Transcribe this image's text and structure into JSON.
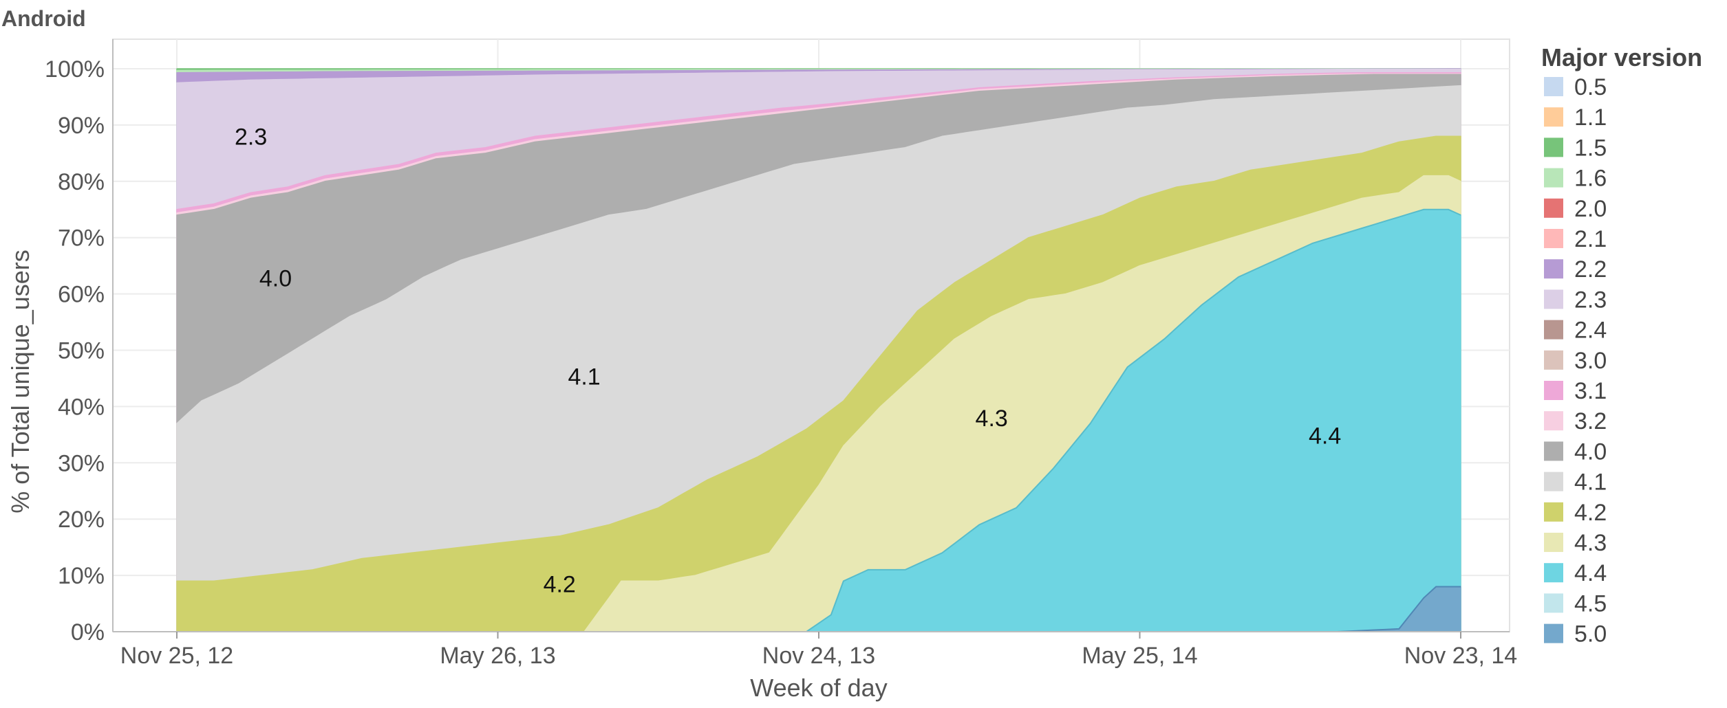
{
  "chart_data": {
    "type": "area",
    "stacked": "percent",
    "title": "Android",
    "xlabel": "Week of day",
    "ylabel": "% of Total unique_users",
    "ylim": [
      0,
      100
    ],
    "x_start": "2012-11-25",
    "x_end": "2014-11-23",
    "x_ticks": [
      {
        "date": "2012-11-25",
        "label": "Nov 25, 12"
      },
      {
        "date": "2013-05-26",
        "label": "May 26, 13"
      },
      {
        "date": "2013-11-24",
        "label": "Nov 24, 13"
      },
      {
        "date": "2014-05-25",
        "label": "May 25, 14"
      },
      {
        "date": "2014-11-23",
        "label": "Nov 23, 14"
      }
    ],
    "y_ticks": [
      "0%",
      "10%",
      "20%",
      "30%",
      "40%",
      "50%",
      "60%",
      "70%",
      "80%",
      "90%",
      "100%"
    ],
    "grid": true,
    "legend_title": "Major version",
    "legend_position": "right",
    "legend": [
      {
        "name": "0.5",
        "color": "#c6d9f0"
      },
      {
        "name": "1.1",
        "color": "#ffcc99"
      },
      {
        "name": "1.5",
        "color": "#77c47a"
      },
      {
        "name": "1.6",
        "color": "#b8e6b8"
      },
      {
        "name": "2.0",
        "color": "#e57373"
      },
      {
        "name": "2.1",
        "color": "#ffb8b8"
      },
      {
        "name": "2.2",
        "color": "#b69bd4"
      },
      {
        "name": "2.3",
        "color": "#dccfe6"
      },
      {
        "name": "2.4",
        "color": "#b89690"
      },
      {
        "name": "3.0",
        "color": "#dcc3bb"
      },
      {
        "name": "3.1",
        "color": "#eea8d8"
      },
      {
        "name": "3.2",
        "color": "#f7cfe1"
      },
      {
        "name": "4.0",
        "color": "#aeaeae"
      },
      {
        "name": "4.1",
        "color": "#dadada"
      },
      {
        "name": "4.2",
        "color": "#cfd26c"
      },
      {
        "name": "4.3",
        "color": "#e8e8b4"
      },
      {
        "name": "4.4",
        "color": "#6ed5e2"
      },
      {
        "name": "4.5",
        "color": "#c2e6ec"
      },
      {
        "name": "5.0",
        "color": "#74a8cc"
      }
    ],
    "bands": [
      {
        "series": "2.3",
        "label": "2.3"
      },
      {
        "series": "4.0",
        "label": "4.0"
      },
      {
        "series": "4.1",
        "label": "4.1"
      },
      {
        "series": "4.2",
        "label": "4.2"
      },
      {
        "series": "4.3",
        "label": "4.3"
      },
      {
        "series": "4.4",
        "label": "4.4"
      }
    ],
    "series": [
      {
        "name": "5.0",
        "points": [
          [
            "2012-11-25",
            0
          ],
          [
            "2014-09-14",
            0
          ],
          [
            "2014-10-19",
            0.5
          ],
          [
            "2014-11-02",
            6
          ],
          [
            "2014-11-09",
            8
          ],
          [
            "2014-11-23",
            8
          ]
        ]
      },
      {
        "name": "4.4",
        "points": [
          [
            "2012-11-25",
            0
          ],
          [
            "2013-11-17",
            0
          ],
          [
            "2013-12-01",
            3
          ],
          [
            "2013-12-08",
            9
          ],
          [
            "2013-12-22",
            11
          ],
          [
            "2014-01-12",
            11
          ],
          [
            "2014-02-02",
            14
          ],
          [
            "2014-02-23",
            19
          ],
          [
            "2014-03-16",
            22
          ],
          [
            "2014-04-06",
            29
          ],
          [
            "2014-04-27",
            37
          ],
          [
            "2014-05-18",
            47
          ],
          [
            "2014-06-08",
            52
          ],
          [
            "2014-06-29",
            58
          ],
          [
            "2014-07-20",
            63
          ],
          [
            "2014-08-10",
            66
          ],
          [
            "2014-08-31",
            69
          ],
          [
            "2014-09-21",
            71
          ],
          [
            "2014-10-12",
            73
          ],
          [
            "2014-11-02",
            75
          ],
          [
            "2014-11-16",
            75
          ],
          [
            "2014-11-23",
            74
          ]
        ]
      },
      {
        "name": "4.3",
        "points": [
          [
            "2012-11-25",
            0
          ],
          [
            "2013-07-14",
            0
          ],
          [
            "2013-08-04",
            9
          ],
          [
            "2013-08-25",
            9
          ],
          [
            "2013-09-15",
            10
          ],
          [
            "2013-10-06",
            12
          ],
          [
            "2013-10-27",
            14
          ],
          [
            "2013-11-10",
            20
          ],
          [
            "2013-11-24",
            26
          ],
          [
            "2013-12-08",
            33
          ],
          [
            "2013-12-29",
            40
          ],
          [
            "2014-01-19",
            46
          ],
          [
            "2014-02-09",
            52
          ],
          [
            "2014-03-02",
            56
          ],
          [
            "2014-03-23",
            59
          ],
          [
            "2014-04-13",
            60
          ],
          [
            "2014-05-04",
            62
          ],
          [
            "2014-05-25",
            65
          ],
          [
            "2014-06-15",
            67
          ],
          [
            "2014-07-06",
            69
          ],
          [
            "2014-07-27",
            71
          ],
          [
            "2014-08-17",
            73
          ],
          [
            "2014-09-07",
            75
          ],
          [
            "2014-09-28",
            77
          ],
          [
            "2014-10-19",
            78
          ],
          [
            "2014-11-02",
            81
          ],
          [
            "2014-11-16",
            81
          ],
          [
            "2014-11-23",
            80
          ]
        ]
      },
      {
        "name": "4.2",
        "points": [
          [
            "2012-11-25",
            9
          ],
          [
            "2012-12-16",
            9
          ],
          [
            "2013-01-13",
            10
          ],
          [
            "2013-02-10",
            11
          ],
          [
            "2013-03-10",
            13
          ],
          [
            "2013-04-07",
            14
          ],
          [
            "2013-05-05",
            15
          ],
          [
            "2013-06-02",
            16
          ],
          [
            "2013-06-30",
            17
          ],
          [
            "2013-07-28",
            19
          ],
          [
            "2013-08-25",
            22
          ],
          [
            "2013-09-22",
            27
          ],
          [
            "2013-10-20",
            31
          ],
          [
            "2013-11-17",
            36
          ],
          [
            "2013-12-08",
            41
          ],
          [
            "2013-12-29",
            49
          ],
          [
            "2014-01-19",
            57
          ],
          [
            "2014-02-09",
            62
          ],
          [
            "2014-03-02",
            66
          ],
          [
            "2014-03-23",
            70
          ],
          [
            "2014-04-13",
            72
          ],
          [
            "2014-05-04",
            74
          ],
          [
            "2014-05-25",
            77
          ],
          [
            "2014-06-15",
            79
          ],
          [
            "2014-07-06",
            80
          ],
          [
            "2014-07-27",
            82
          ],
          [
            "2014-08-17",
            83
          ],
          [
            "2014-09-07",
            84
          ],
          [
            "2014-09-28",
            85
          ],
          [
            "2014-10-19",
            87
          ],
          [
            "2014-11-09",
            88
          ],
          [
            "2014-11-23",
            88
          ]
        ]
      },
      {
        "name": "4.1",
        "points": [
          [
            "2012-11-25",
            37
          ],
          [
            "2012-12-09",
            41
          ],
          [
            "2012-12-30",
            44
          ],
          [
            "2013-01-20",
            48
          ],
          [
            "2013-02-10",
            52
          ],
          [
            "2013-03-03",
            56
          ],
          [
            "2013-03-24",
            59
          ],
          [
            "2013-04-14",
            63
          ],
          [
            "2013-05-05",
            66
          ],
          [
            "2013-05-26",
            68
          ],
          [
            "2013-06-16",
            70
          ],
          [
            "2013-07-07",
            72
          ],
          [
            "2013-07-28",
            74
          ],
          [
            "2013-08-18",
            75
          ],
          [
            "2013-09-08",
            77
          ],
          [
            "2013-09-29",
            79
          ],
          [
            "2013-10-20",
            81
          ],
          [
            "2013-11-10",
            83
          ],
          [
            "2013-12-01",
            84
          ],
          [
            "2013-12-22",
            85
          ],
          [
            "2014-01-12",
            86
          ],
          [
            "2014-02-02",
            88
          ],
          [
            "2014-02-23",
            89
          ],
          [
            "2014-03-16",
            90
          ],
          [
            "2014-04-06",
            91
          ],
          [
            "2014-04-27",
            92
          ],
          [
            "2014-05-18",
            93
          ],
          [
            "2014-06-08",
            93.5
          ],
          [
            "2014-07-06",
            94.5
          ],
          [
            "2014-08-03",
            95
          ],
          [
            "2014-08-31",
            95.5
          ],
          [
            "2014-09-28",
            96
          ],
          [
            "2014-10-26",
            96.5
          ],
          [
            "2014-11-23",
            97
          ]
        ]
      },
      {
        "name": "4.0",
        "points": [
          [
            "2012-11-25",
            74
          ],
          [
            "2012-12-16",
            75
          ],
          [
            "2013-01-06",
            77
          ],
          [
            "2013-01-27",
            78
          ],
          [
            "2013-02-17",
            80
          ],
          [
            "2013-03-10",
            81
          ],
          [
            "2013-03-31",
            82
          ],
          [
            "2013-04-21",
            84
          ],
          [
            "2013-05-19",
            85
          ],
          [
            "2013-06-16",
            87
          ],
          [
            "2013-07-14",
            88
          ],
          [
            "2013-08-11",
            89
          ],
          [
            "2013-09-08",
            90
          ],
          [
            "2013-10-06",
            91
          ],
          [
            "2013-11-03",
            92
          ],
          [
            "2013-12-01",
            93
          ],
          [
            "2013-12-29",
            94
          ],
          [
            "2014-01-26",
            95
          ],
          [
            "2014-02-23",
            96
          ],
          [
            "2014-03-23",
            96.5
          ],
          [
            "2014-04-20",
            97
          ],
          [
            "2014-05-18",
            97.5
          ],
          [
            "2014-06-15",
            98
          ],
          [
            "2014-07-13",
            98.3
          ],
          [
            "2014-08-10",
            98.6
          ],
          [
            "2014-09-07",
            98.8
          ],
          [
            "2014-10-05",
            99
          ],
          [
            "2014-11-23",
            99
          ]
        ]
      },
      {
        "name": "3.2",
        "points": [
          [
            "2012-11-25",
            74.4
          ],
          [
            "2012-12-16",
            75.4
          ],
          [
            "2013-01-06",
            77.4
          ],
          [
            "2013-01-27",
            78.4
          ],
          [
            "2013-02-17",
            80.4
          ],
          [
            "2013-03-10",
            81.4
          ],
          [
            "2013-03-31",
            82.4
          ],
          [
            "2013-04-21",
            84.4
          ],
          [
            "2013-05-19",
            85.4
          ],
          [
            "2013-06-16",
            87.4
          ],
          [
            "2013-07-14",
            88.4
          ],
          [
            "2013-08-11",
            89.4
          ],
          [
            "2013-09-08",
            90.4
          ],
          [
            "2013-10-06",
            91.4
          ],
          [
            "2013-11-03",
            92.4
          ],
          [
            "2013-12-01",
            93.3
          ],
          [
            "2013-12-29",
            94.3
          ],
          [
            "2014-01-26",
            95.3
          ],
          [
            "2014-02-23",
            96.3
          ],
          [
            "2014-03-23",
            96.8
          ],
          [
            "2014-04-20",
            97.3
          ],
          [
            "2014-05-18",
            97.8
          ],
          [
            "2014-06-15",
            98.2
          ],
          [
            "2014-07-13",
            98.5
          ],
          [
            "2014-08-10",
            98.8
          ],
          [
            "2014-09-07",
            99
          ],
          [
            "2014-10-05",
            99.1
          ],
          [
            "2014-11-23",
            99.1
          ]
        ]
      },
      {
        "name": "3.1",
        "points": [
          [
            "2012-11-25",
            75
          ],
          [
            "2012-12-16",
            76
          ],
          [
            "2013-01-06",
            78
          ],
          [
            "2013-01-27",
            79
          ],
          [
            "2013-02-17",
            81
          ],
          [
            "2013-03-10",
            82
          ],
          [
            "2013-03-31",
            83
          ],
          [
            "2013-04-21",
            85
          ],
          [
            "2013-05-19",
            86
          ],
          [
            "2013-06-16",
            88
          ],
          [
            "2013-07-14",
            89
          ],
          [
            "2013-08-11",
            90
          ],
          [
            "2013-09-08",
            91
          ],
          [
            "2013-10-06",
            92
          ],
          [
            "2013-11-03",
            93
          ],
          [
            "2013-12-01",
            93.8
          ],
          [
            "2013-12-29",
            94.8
          ],
          [
            "2014-01-26",
            95.7
          ],
          [
            "2014-02-23",
            96.6
          ],
          [
            "2014-03-23",
            97.1
          ],
          [
            "2014-04-20",
            97.6
          ],
          [
            "2014-05-18",
            98
          ],
          [
            "2014-06-15",
            98.4
          ],
          [
            "2014-07-13",
            98.7
          ],
          [
            "2014-08-10",
            99
          ],
          [
            "2014-09-07",
            99.2
          ],
          [
            "2014-10-05",
            99.3
          ],
          [
            "2014-11-23",
            99.3
          ]
        ]
      },
      {
        "name": "2.3",
        "points": [
          [
            "2012-11-25",
            97.5
          ],
          [
            "2013-01-06",
            98
          ],
          [
            "2013-03-03",
            98.3
          ],
          [
            "2013-04-28",
            98.6
          ],
          [
            "2013-06-23",
            98.9
          ],
          [
            "2013-08-18",
            99.1
          ],
          [
            "2013-10-13",
            99.3
          ],
          [
            "2013-12-08",
            99.5
          ],
          [
            "2014-02-02",
            99.6
          ],
          [
            "2014-03-30",
            99.7
          ],
          [
            "2014-05-25",
            99.8
          ],
          [
            "2014-07-20",
            99.8
          ],
          [
            "2014-09-14",
            99.9
          ],
          [
            "2014-11-23",
            99.9
          ]
        ]
      },
      {
        "name": "2.2",
        "points": [
          [
            "2012-11-25",
            99.3
          ],
          [
            "2013-03-03",
            99.5
          ],
          [
            "2013-07-07",
            99.6
          ],
          [
            "2013-11-10",
            99.75
          ],
          [
            "2014-03-16",
            99.85
          ],
          [
            "2014-07-20",
            99.9
          ],
          [
            "2014-11-23",
            100
          ]
        ]
      },
      {
        "name": "1.6",
        "points": [
          [
            "2012-11-25",
            99.7
          ],
          [
            "2013-07-07",
            99.85
          ],
          [
            "2014-03-16",
            99.93
          ],
          [
            "2014-11-23",
            100
          ]
        ]
      },
      {
        "name": "1.5",
        "points": [
          [
            "2012-11-25",
            100
          ],
          [
            "2014-11-23",
            100
          ]
        ]
      }
    ]
  }
}
